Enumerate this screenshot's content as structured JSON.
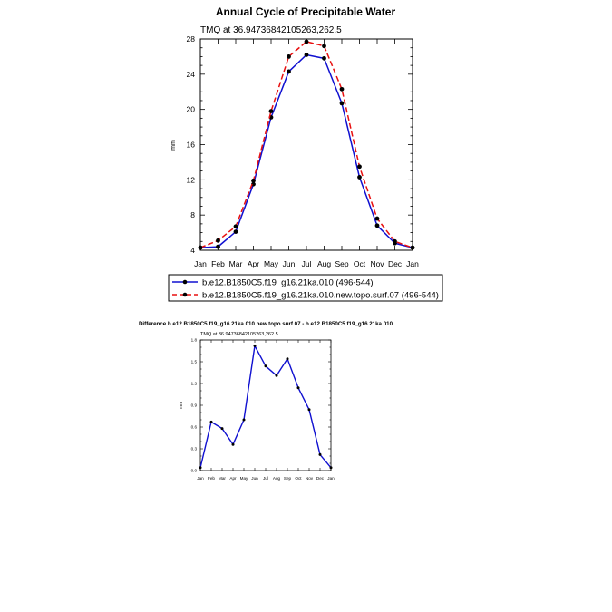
{
  "figure": {
    "top_title": "Annual Cycle of Precipitable Water",
    "bottom_title": "Difference b.e12.B1850C5.f19_g16.21ka.010.new.topo.surf.07 - b.e12.B1850C5.f19_g16.21ka.010"
  },
  "colors": {
    "series_a": "#1010d0",
    "series_b": "#e81010",
    "marker": "#000000"
  },
  "chart_data": [
    {
      "type": "line",
      "title": "Annual Cycle of Precipitable Water",
      "subtitle": "TMQ at 36.94736842105263,262.5",
      "ylabel": "mm",
      "xlabel": "",
      "categories": [
        "Jan",
        "Feb",
        "Mar",
        "Apr",
        "May",
        "Jun",
        "Jul",
        "Aug",
        "Sep",
        "Oct",
        "Nov",
        "Dec",
        "Jan"
      ],
      "ylim": [
        4,
        28
      ],
      "yticks": [
        4,
        8,
        12,
        16,
        20,
        24,
        28
      ],
      "grid": false,
      "legend_position": "below",
      "series": [
        {
          "name": "b.e12.B1850C5.f19_g16.21ka.010 (496-544)",
          "color": "#1010d0",
          "dash": "solid",
          "values": [
            4.3,
            4.4,
            6.1,
            11.5,
            19.1,
            24.3,
            26.2,
            25.8,
            20.7,
            12.3,
            6.8,
            4.8,
            4.3
          ]
        },
        {
          "name": "b.e12.B1850C5.f19_g16.21ka.010.new.topo.surf.07 (496-544)",
          "color": "#e81010",
          "dash": "dashed",
          "values": [
            4.3,
            5.1,
            6.7,
            11.9,
            19.8,
            26.0,
            27.7,
            27.2,
            22.3,
            13.5,
            7.6,
            5.0,
            4.3
          ]
        }
      ]
    },
    {
      "type": "line",
      "title": "Difference b.e12.B1850C5.f19_g16.21ka.010.new.topo.surf.07 - b.e12.B1850C5.f19_g16.21ka.010",
      "subtitle": "TMQ at 36.94736842105263,262.5",
      "ylabel": "mm",
      "xlabel": "",
      "categories": [
        "Jan",
        "Feb",
        "Mar",
        "Apr",
        "May",
        "Jun",
        "Jul",
        "Aug",
        "Sep",
        "Oct",
        "Nov",
        "Dec",
        "Jan"
      ],
      "ylim": [
        0.0,
        1.8
      ],
      "yticks": [
        "0.0",
        "0.3",
        "0.6",
        "0.9",
        "1.2",
        "1.5",
        "1.8"
      ],
      "grid": false,
      "series": [
        {
          "name": "",
          "color": "#1010d0",
          "dash": "solid",
          "values": [
            0.04,
            0.67,
            0.58,
            0.36,
            0.7,
            1.72,
            1.44,
            1.31,
            1.54,
            1.14,
            0.84,
            0.22,
            0.04
          ]
        }
      ]
    }
  ]
}
